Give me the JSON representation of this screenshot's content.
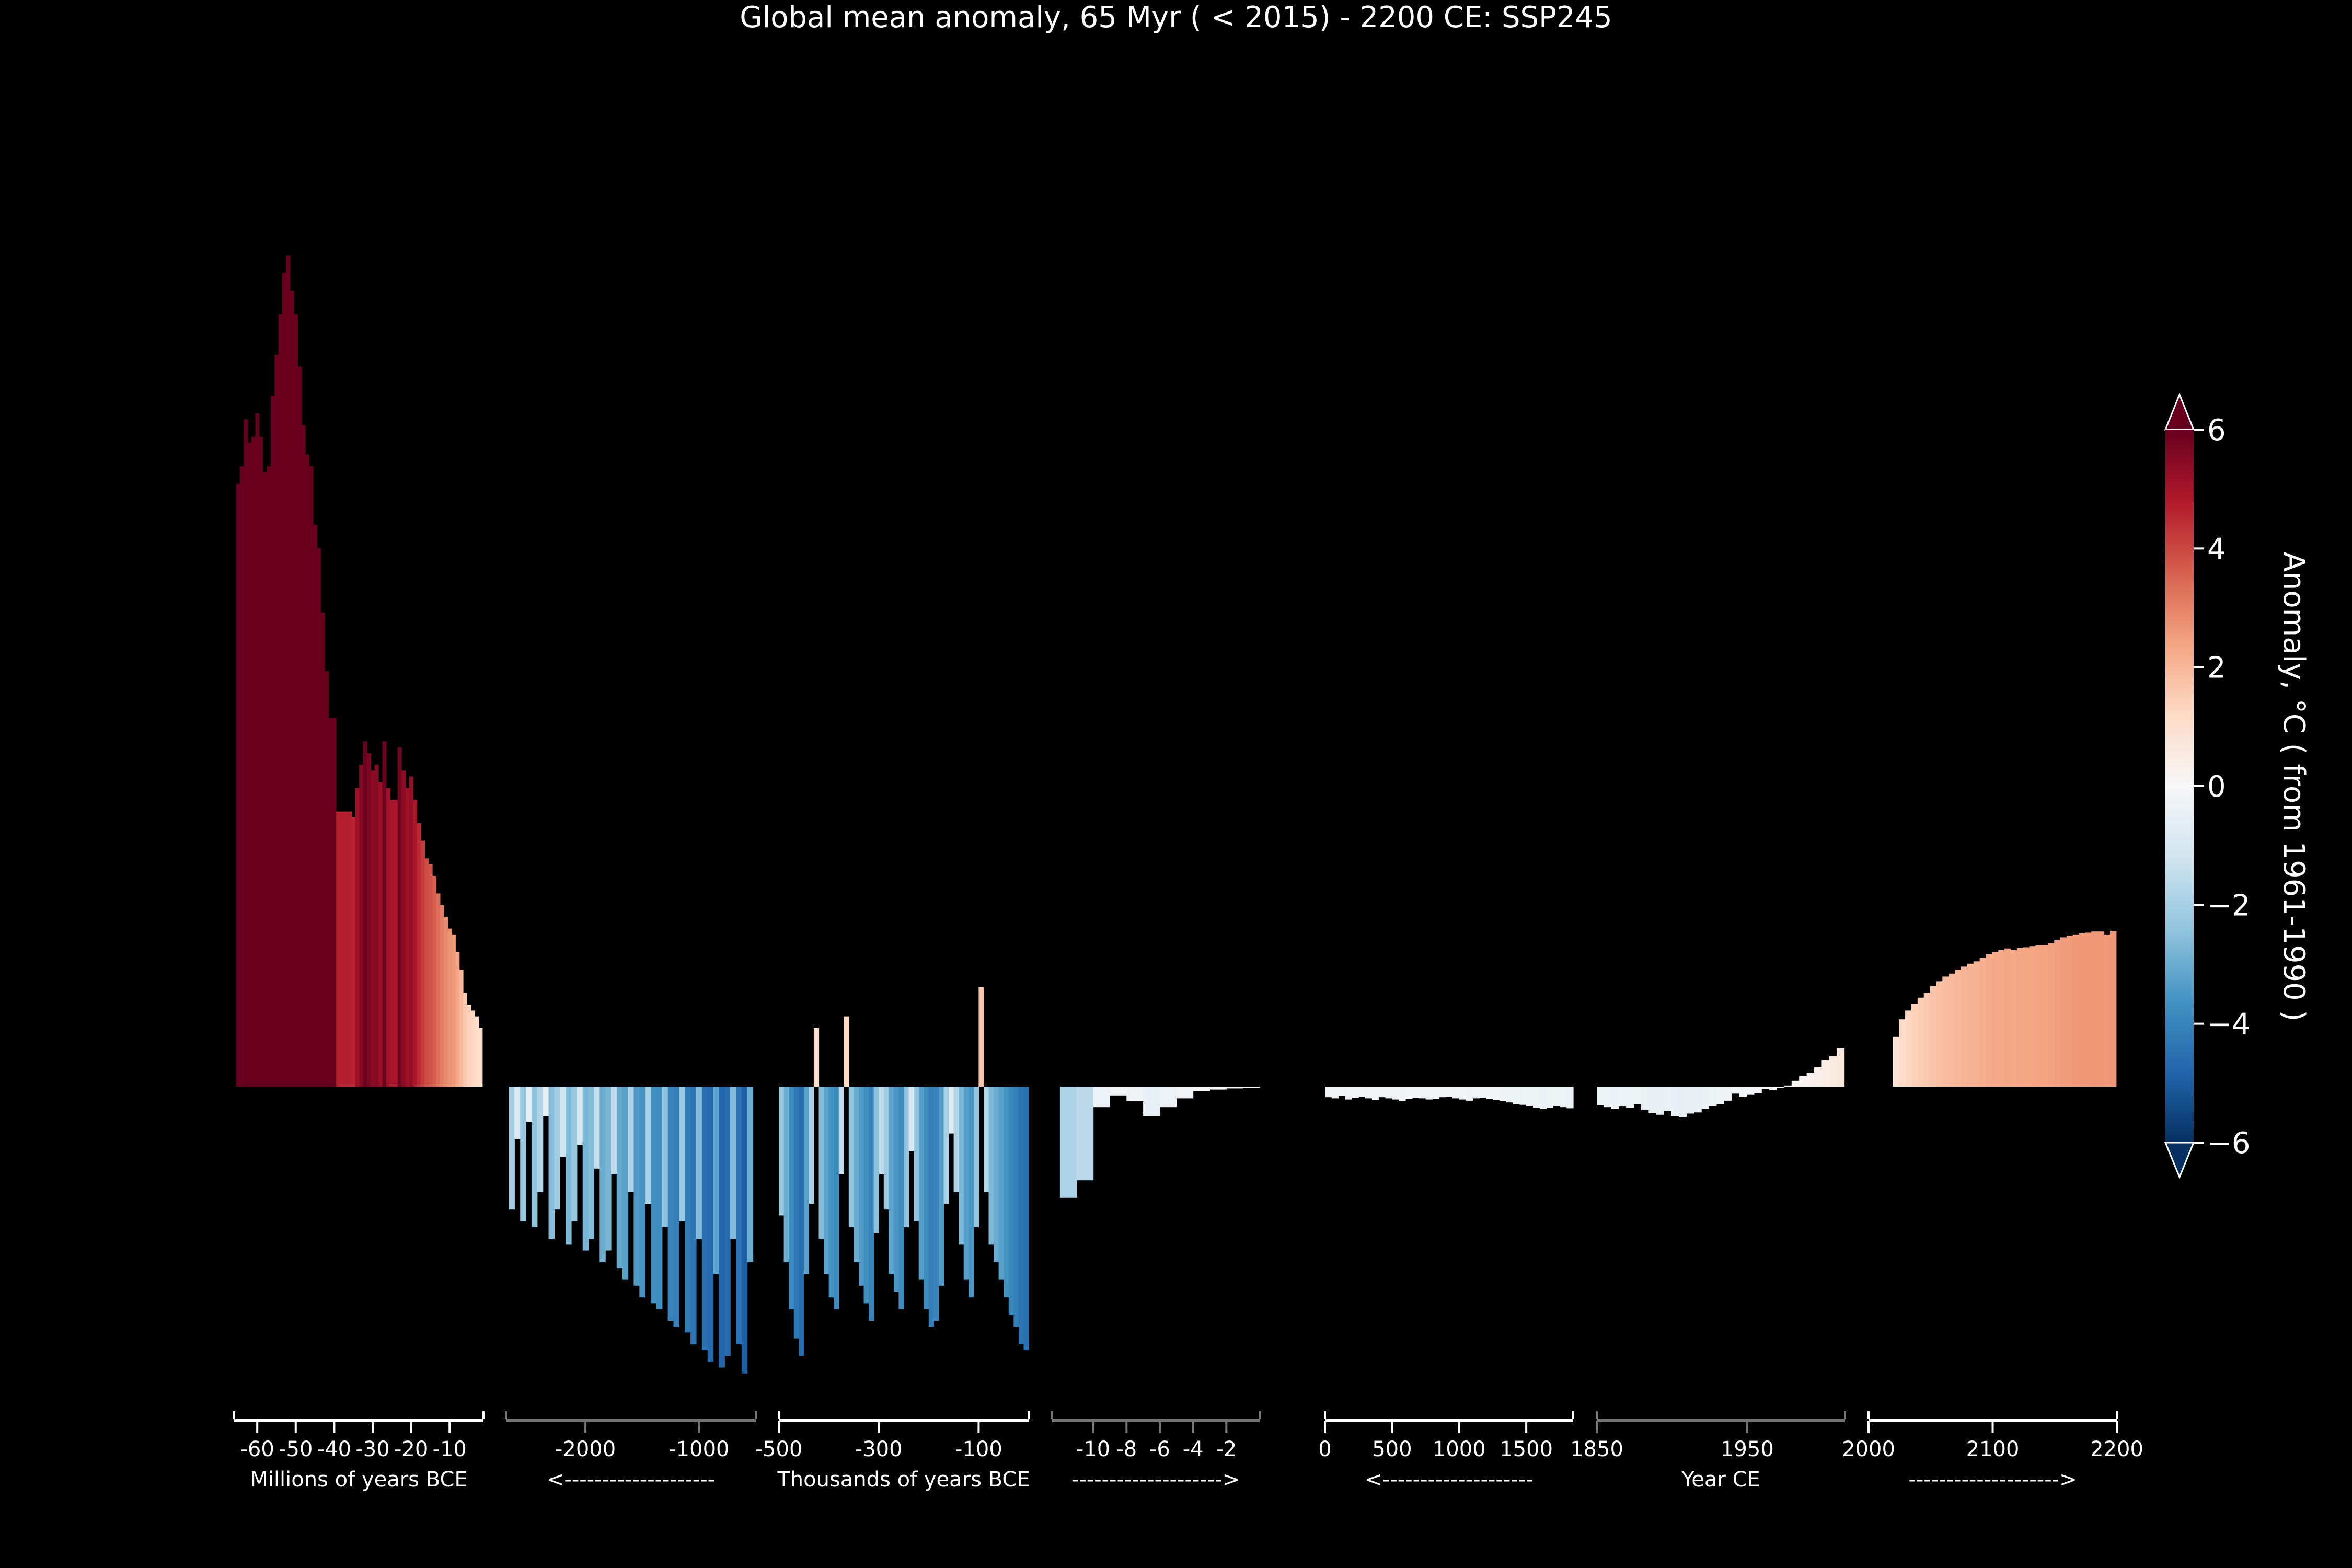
{
  "chart_data": {
    "type": "bar",
    "title": "Global mean anomaly, 65 Myr ( < 2015) - 2200 CE: SSP245",
    "colorbar": {
      "label": "Anomaly, °C ( from 1961-1990 )",
      "ticks": [
        "6",
        "4",
        "2",
        "0",
        "−2",
        "−4",
        "−6"
      ],
      "range": [
        -6,
        6
      ],
      "colormap": "RdBu_r",
      "colors": {
        "high": "#67001f",
        "mid": "#f7f7f7",
        "low": "#053061"
      },
      "extend": "both"
    },
    "y_range": [
      -5.5,
      14.5
    ],
    "panels": [
      {
        "name": "millions",
        "x_range": [
          -66,
          -1.2
        ],
        "tick_color": "#ffffff",
        "ticks": [
          {
            "v": -60,
            "label": "-60"
          },
          {
            "v": -50,
            "label": "-50"
          },
          {
            "v": -40,
            "label": "-40"
          },
          {
            "v": -30,
            "label": "-30"
          },
          {
            "v": -20,
            "label": "-20"
          },
          {
            "v": -10,
            "label": "-10"
          }
        ],
        "caption": "Millions of years BCE",
        "x": [
          -65,
          -64,
          -63,
          -62,
          -61,
          -60,
          -59,
          -58,
          -57,
          -56,
          -55,
          -54,
          -53,
          -52,
          -51,
          -50,
          -49,
          -48,
          -47,
          -46,
          -45,
          -44,
          -43,
          -42,
          -41,
          -40,
          -39,
          -38,
          -37,
          -36,
          -35,
          -34,
          -33,
          -32,
          -31,
          -30,
          -29,
          -28,
          -27,
          -26,
          -25,
          -24,
          -23,
          -22,
          -21,
          -20,
          -19,
          -18,
          -17,
          -16,
          -15,
          -14,
          -13,
          -12,
          -11,
          -10,
          -9,
          -8,
          -7,
          -6,
          -5,
          -4,
          -3,
          -2
        ],
        "values": [
          10.3,
          10.6,
          11.4,
          11.0,
          11.1,
          11.5,
          11.1,
          10.5,
          10.6,
          11.8,
          12.5,
          13.2,
          13.9,
          14.2,
          13.6,
          13.2,
          12.3,
          11.3,
          10.8,
          10.6,
          9.6,
          9.2,
          8.1,
          7.1,
          6.3,
          6.3,
          4.7,
          4.7,
          4.7,
          4.7,
          4.6,
          5.1,
          5.5,
          5.9,
          5.7,
          5.4,
          5.5,
          5.2,
          5.9,
          5.1,
          4.9,
          4.9,
          5.8,
          5.4,
          5.1,
          5.3,
          4.9,
          4.5,
          4.2,
          3.9,
          3.8,
          3.6,
          3.3,
          3.1,
          2.9,
          2.7,
          2.6,
          2.3,
          2.0,
          1.6,
          1.4,
          1.3,
          1.2,
          1.0
        ]
      },
      {
        "name": "early-kyr",
        "x_range": [
          -2700,
          -500
        ],
        "tick_color": "#777777",
        "ticks": [
          {
            "v": -2000,
            "label": "-2000"
          },
          {
            "v": -1000,
            "label": "-1000"
          }
        ],
        "caption": "<--------------------",
        "x": [
          -2650,
          -2600,
          -2550,
          -2500,
          -2450,
          -2400,
          -2350,
          -2300,
          -2250,
          -2200,
          -2150,
          -2100,
          -2050,
          -2000,
          -1950,
          -1900,
          -1850,
          -1800,
          -1750,
          -1700,
          -1650,
          -1600,
          -1550,
          -1500,
          -1450,
          -1400,
          -1350,
          -1300,
          -1250,
          -1200,
          -1150,
          -1100,
          -1050,
          -1000,
          -950,
          -900,
          -850,
          -800,
          -750,
          -700,
          -650,
          -600,
          -550
        ],
        "values": [
          -2.1,
          -0.9,
          -2.3,
          -0.6,
          -2.4,
          -1.8,
          -0.5,
          -2.6,
          -2.1,
          -1.2,
          -2.7,
          -2.3,
          -1.0,
          -2.8,
          -2.6,
          -1.4,
          -3.0,
          -2.8,
          -1.5,
          -3.1,
          -3.3,
          -1.8,
          -3.4,
          -3.6,
          -2.0,
          -3.7,
          -3.8,
          -2.4,
          -4.0,
          -4.1,
          -2.3,
          -4.2,
          -4.4,
          -2.6,
          -4.5,
          -4.7,
          -3.2,
          -4.8,
          -4.6,
          -2.6,
          -4.4,
          -4.9,
          -3.0
        ]
      },
      {
        "name": "late-kyr",
        "x_range": [
          -500,
          0
        ],
        "tick_color": "#ffffff",
        "ticks": [
          {
            "v": -500,
            "label": "-500"
          },
          {
            "v": -300,
            "label": "-300"
          },
          {
            "v": -100,
            "label": "-100"
          }
        ],
        "caption": "Thousands of years BCE",
        "x": [
          -495,
          -485,
          -475,
          -465,
          -455,
          -445,
          -435,
          -425,
          -415,
          -405,
          -395,
          -385,
          -375,
          -365,
          -355,
          -345,
          -335,
          -325,
          -315,
          -305,
          -295,
          -285,
          -275,
          -265,
          -255,
          -245,
          -235,
          -225,
          -215,
          -205,
          -195,
          -185,
          -175,
          -165,
          -155,
          -145,
          -135,
          -125,
          -115,
          -105,
          -95,
          -85,
          -75,
          -65,
          -55,
          -45,
          -35,
          -25,
          -15,
          -5
        ],
        "values": [
          -2.2,
          -3.0,
          -3.8,
          -4.3,
          -4.6,
          -3.2,
          -2.0,
          1.0,
          -2.6,
          -3.2,
          -3.6,
          -3.8,
          -1.5,
          1.2,
          -2.4,
          -3.0,
          -3.4,
          -3.7,
          -4.0,
          -2.5,
          -1.5,
          -2.1,
          -3.2,
          -3.5,
          -3.8,
          -2.4,
          -1.1,
          -2.3,
          -3.3,
          -3.8,
          -4.1,
          -4.0,
          -3.4,
          -2.0,
          -0.8,
          -1.8,
          -2.7,
          -3.3,
          -3.6,
          -2.4,
          1.7,
          -1.8,
          -2.7,
          -3.0,
          -3.3,
          -3.6,
          -3.9,
          -4.1,
          -4.4,
          -4.5
        ]
      },
      {
        "name": "holocene",
        "x_range": [
          -12.5,
          0
        ],
        "tick_color": "#777777",
        "ticks": [
          {
            "v": -10,
            "label": "-10"
          },
          {
            "v": -8,
            "label": "-8"
          },
          {
            "v": -6,
            "label": "-6"
          },
          {
            "v": -4,
            "label": "-4"
          },
          {
            "v": -2,
            "label": "-2"
          }
        ],
        "caption": "-------------------->",
        "x": [
          -11.5,
          -10.5,
          -9.5,
          -8.5,
          -7.5,
          -6.5,
          -5.5,
          -4.5,
          -3.5,
          -2.5,
          -1.5,
          -0.5
        ],
        "values": [
          -1.9,
          -1.6,
          -0.35,
          -0.15,
          -0.25,
          -0.5,
          -0.35,
          -0.2,
          -0.08,
          -0.05,
          -0.03,
          -0.02
        ]
      },
      {
        "name": "common-era",
        "x_range": [
          0,
          1850
        ],
        "tick_color": "#ffffff",
        "ticks": [
          {
            "v": 0,
            "label": "0"
          },
          {
            "v": 500,
            "label": "500"
          },
          {
            "v": 1000,
            "label": "1000"
          },
          {
            "v": 1500,
            "label": "1500"
          }
        ],
        "caption": "<--------------------",
        "x": [
          25,
          75,
          125,
          175,
          225,
          275,
          325,
          375,
          425,
          475,
          525,
          575,
          625,
          675,
          725,
          775,
          825,
          875,
          925,
          975,
          1025,
          1075,
          1125,
          1175,
          1225,
          1275,
          1325,
          1375,
          1425,
          1475,
          1525,
          1575,
          1625,
          1675,
          1725,
          1775,
          1825
        ],
        "values": [
          -0.18,
          -0.2,
          -0.16,
          -0.22,
          -0.19,
          -0.17,
          -0.2,
          -0.23,
          -0.18,
          -0.2,
          -0.22,
          -0.25,
          -0.21,
          -0.19,
          -0.2,
          -0.22,
          -0.21,
          -0.18,
          -0.17,
          -0.2,
          -0.22,
          -0.24,
          -0.2,
          -0.19,
          -0.21,
          -0.23,
          -0.25,
          -0.27,
          -0.3,
          -0.31,
          -0.33,
          -0.36,
          -0.38,
          -0.36,
          -0.33,
          -0.35,
          -0.37
        ]
      },
      {
        "name": "instrumental",
        "x_range": [
          1850,
          2015
        ],
        "tick_color": "#777777",
        "ticks": [
          {
            "v": 1850,
            "label": "1850"
          },
          {
            "v": 1950,
            "label": "1950"
          }
        ],
        "caption": "Year CE",
        "x": [
          1852,
          1857,
          1862,
          1867,
          1872,
          1877,
          1882,
          1887,
          1892,
          1897,
          1902,
          1907,
          1912,
          1917,
          1922,
          1927,
          1932,
          1937,
          1942,
          1947,
          1952,
          1957,
          1962,
          1967,
          1972,
          1977,
          1982,
          1987,
          1992,
          1997,
          2002,
          2007,
          2012
        ],
        "values": [
          -0.32,
          -0.35,
          -0.38,
          -0.34,
          -0.36,
          -0.3,
          -0.4,
          -0.45,
          -0.48,
          -0.42,
          -0.5,
          -0.52,
          -0.46,
          -0.44,
          -0.38,
          -0.33,
          -0.3,
          -0.24,
          -0.12,
          -0.17,
          -0.14,
          -0.11,
          -0.04,
          -0.06,
          -0.02,
          0.02,
          0.1,
          0.18,
          0.24,
          0.33,
          0.45,
          0.52,
          0.66
        ]
      },
      {
        "name": "projection",
        "x_range": [
          2000,
          2200
        ],
        "tick_color": "#ffffff",
        "ticks": [
          {
            "v": 2000,
            "label": "2000"
          },
          {
            "v": 2100,
            "label": "2100"
          },
          {
            "v": 2200,
            "label": "2200"
          }
        ],
        "caption": "-------------------->",
        "x": [
          2022,
          2027,
          2032,
          2037,
          2042,
          2047,
          2052,
          2057,
          2062,
          2067,
          2072,
          2077,
          2082,
          2087,
          2092,
          2097,
          2102,
          2107,
          2112,
          2117,
          2122,
          2127,
          2132,
          2137,
          2142,
          2147,
          2152,
          2157,
          2162,
          2167,
          2172,
          2177,
          2182,
          2187,
          2192,
          2197
        ],
        "values": [
          0.85,
          1.15,
          1.3,
          1.42,
          1.52,
          1.6,
          1.72,
          1.8,
          1.88,
          1.93,
          2.0,
          2.05,
          2.1,
          2.14,
          2.2,
          2.26,
          2.3,
          2.33,
          2.36,
          2.33,
          2.37,
          2.38,
          2.4,
          2.42,
          2.42,
          2.45,
          2.5,
          2.55,
          2.58,
          2.6,
          2.62,
          2.63,
          2.65,
          2.65,
          2.6,
          2.66
        ]
      }
    ]
  }
}
